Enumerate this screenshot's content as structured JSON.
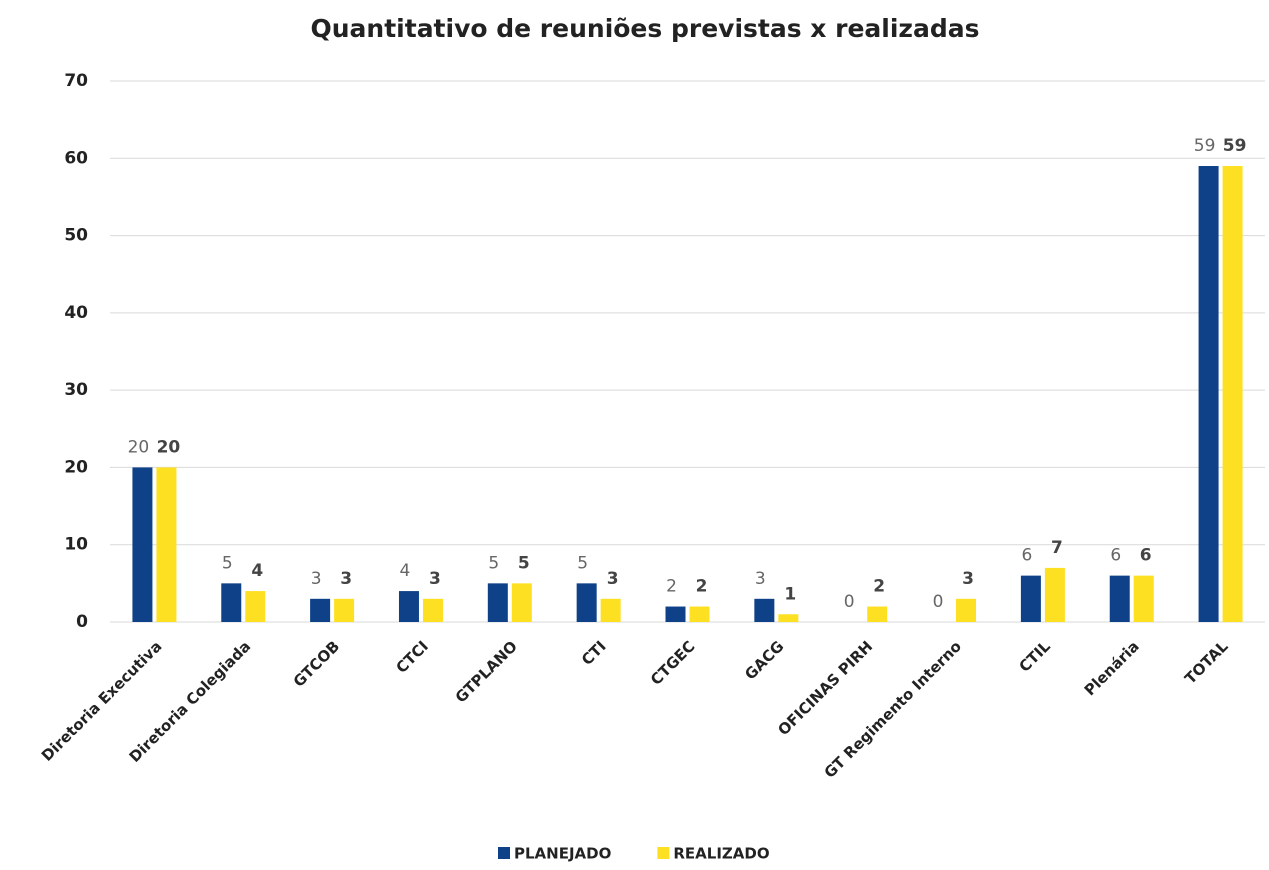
{
  "chart_data": {
    "type": "bar",
    "title": "Quantitativo de reuniões previstas x realizadas",
    "categories": [
      "Diretoria Executiva",
      "Diretoria Colegiada",
      "GTCOB",
      "CTCI",
      "GTPLANO",
      "CTI",
      "CTGEC",
      "GACG",
      "OFICINAS PIRH",
      "GT Regimento Interno",
      "CTIL",
      "Plenária",
      "TOTAL"
    ],
    "series": [
      {
        "name": "PLANEJADO",
        "color": "#0e4187",
        "values": [
          20,
          5,
          3,
          4,
          5,
          5,
          2,
          3,
          0,
          0,
          6,
          6,
          59
        ]
      },
      {
        "name": "REALIZADO",
        "color": "#fde021",
        "values": [
          20,
          4,
          3,
          3,
          5,
          3,
          2,
          1,
          2,
          3,
          7,
          6,
          59
        ]
      }
    ],
    "ylim": [
      0,
      70
    ],
    "yticks": [
      0,
      10,
      20,
      30,
      40,
      50,
      60,
      70
    ],
    "grid": true,
    "legend": "bottom"
  }
}
